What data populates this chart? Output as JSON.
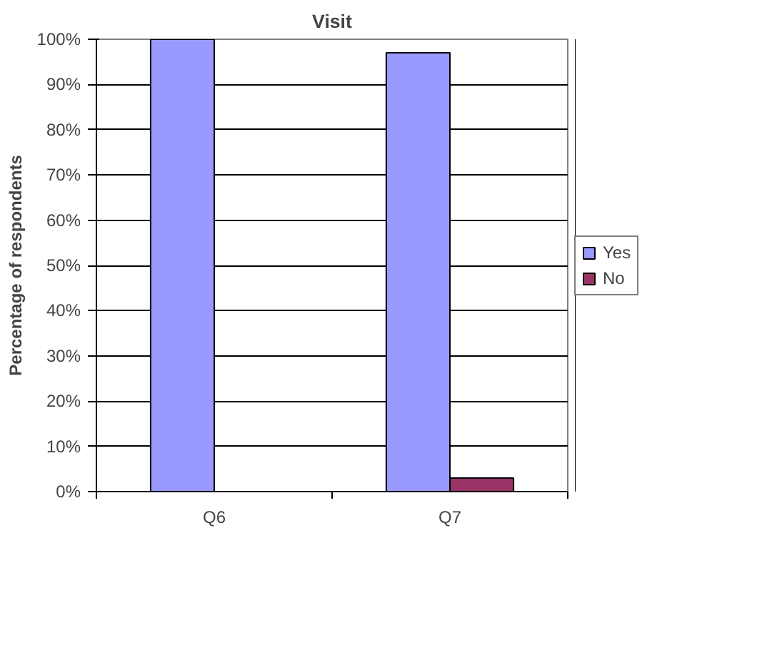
{
  "chart_data": {
    "type": "bar",
    "title": "Visit",
    "ylabel": "Percentage of respondents",
    "categories": [
      "Q6",
      "Q7"
    ],
    "series": [
      {
        "name": "Yes",
        "color": "#9999ff",
        "values": [
          100,
          97
        ]
      },
      {
        "name": "No",
        "color": "#993366",
        "values": [
          0,
          3
        ]
      }
    ],
    "ylim": [
      0,
      100
    ],
    "yticks": [
      {
        "value": 0,
        "label": "0%"
      },
      {
        "value": 10,
        "label": "10%"
      },
      {
        "value": 20,
        "label": "20%"
      },
      {
        "value": 30,
        "label": "30%"
      },
      {
        "value": 40,
        "label": "40%"
      },
      {
        "value": 50,
        "label": "50%"
      },
      {
        "value": 60,
        "label": "60%"
      },
      {
        "value": 70,
        "label": "70%"
      },
      {
        "value": 80,
        "label": "80%"
      },
      {
        "value": 90,
        "label": "90%"
      },
      {
        "value": 100,
        "label": "100%"
      }
    ],
    "grid": "y",
    "legend": "right"
  }
}
